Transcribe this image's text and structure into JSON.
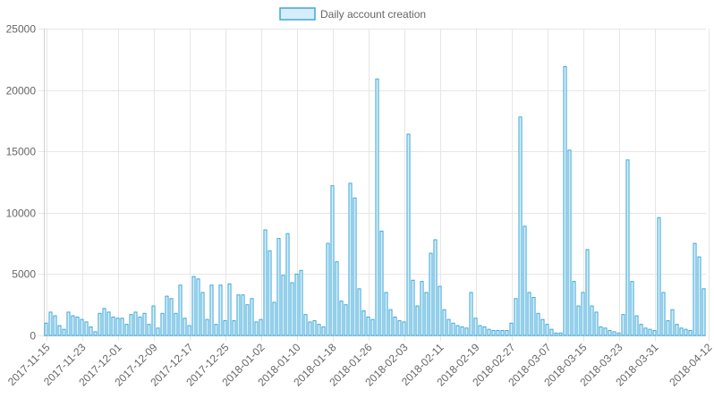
{
  "chart_data": {
    "type": "bar",
    "legend": {
      "label": "Daily account creation",
      "placement": "top-center"
    },
    "colors": {
      "bar_fill": "#d6eefa",
      "bar_stroke": "#3fa8d8",
      "grid": "#e6e6e6",
      "text": "#666666"
    },
    "grid": true,
    "ylim": [
      0,
      25000
    ],
    "y_ticks": [
      0,
      5000,
      10000,
      15000,
      20000,
      25000
    ],
    "x_tick_labels": [
      "2017-11-15",
      "2017-11-23",
      "2017-12-01",
      "2017-12-09",
      "2017-12-17",
      "2017-12-25",
      "2018-01-02",
      "2018-01-10",
      "2018-01-18",
      "2018-01-26",
      "2018-02-03",
      "2018-02-11",
      "2018-02-19",
      "2018-02-27",
      "2018-03-07",
      "2018-03-15",
      "2018-03-23",
      "2018-03-31",
      "2018-04-12"
    ],
    "start_date": "2017-11-15",
    "values": [
      1000,
      1900,
      1600,
      800,
      500,
      1900,
      1600,
      1500,
      1300,
      1100,
      700,
      300,
      1800,
      2200,
      1900,
      1500,
      1400,
      1400,
      900,
      1700,
      1900,
      1500,
      1800,
      900,
      2400,
      600,
      1800,
      3200,
      3000,
      1800,
      4100,
      1400,
      800,
      4800,
      4600,
      3500,
      1300,
      4100,
      900,
      4100,
      1200,
      4200,
      1200,
      3300,
      3300,
      2500,
      3000,
      1100,
      1300,
      8600,
      6900,
      2700,
      7900,
      4900,
      8300,
      4300,
      5000,
      5300,
      1700,
      1100,
      1200,
      900,
      700,
      7500,
      12200,
      6000,
      2800,
      2500,
      12400,
      11200,
      3800,
      2000,
      1500,
      1300,
      20900,
      8500,
      3500,
      2100,
      1500,
      1200,
      1100,
      16400,
      4500,
      2400,
      4400,
      3500,
      6700,
      7800,
      4000,
      2100,
      1300,
      1000,
      800,
      700,
      600,
      3500,
      1400,
      800,
      700,
      500,
      400,
      400,
      400,
      400,
      1000,
      3000,
      17800,
      8900,
      3500,
      3100,
      1800,
      1300,
      900,
      500,
      200,
      200,
      21900,
      15100,
      4400,
      2400,
      3500,
      7000,
      2400,
      1900,
      700,
      600,
      400,
      300,
      200,
      1700,
      14300,
      4400,
      1600,
      900,
      600,
      500,
      400,
      9600,
      3500,
      1200,
      2100,
      900,
      600,
      500,
      400,
      7500,
      6400,
      3800
    ]
  }
}
